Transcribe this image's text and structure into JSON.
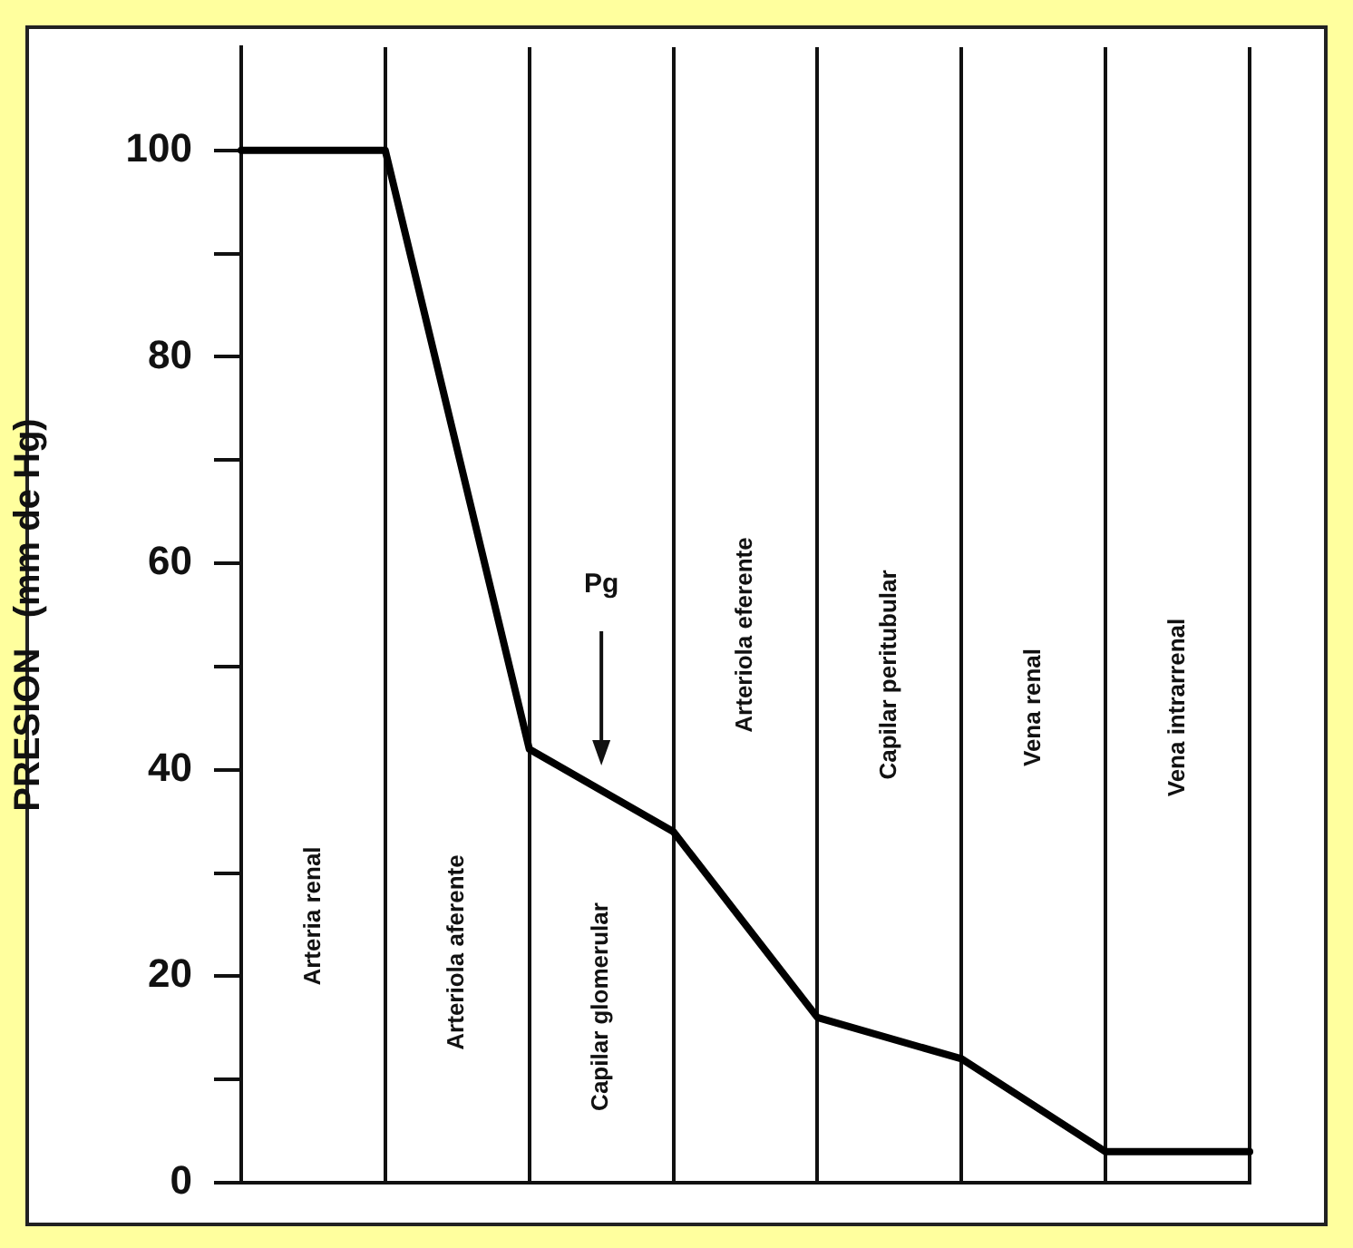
{
  "chart_data": {
    "type": "line",
    "ylabel": "PRESION   (mm de Hg)",
    "categories": [
      null,
      null,
      null,
      null,
      null,
      null,
      null,
      null
    ],
    "values": [
      100,
      100,
      42,
      34,
      16,
      12,
      3,
      3
    ],
    "color": "#000000",
    "ylim": [
      0,
      110
    ],
    "yticks": [
      0,
      {
        "value": 10,
        "label": null
      },
      20,
      {
        "value": 30,
        "label": null
      },
      40,
      {
        "value": 50,
        "label": null
      },
      60,
      {
        "value": 70,
        "label": null
      },
      80,
      {
        "value": 90,
        "label": null
      },
      100
    ],
    "tick_labels": "y",
    "grid": "x",
    "annotations": [
      "Arteria renal",
      "Arteriola aferente",
      "Capilar glomerular",
      "Arteriola eferente",
      "Capilar peritubular",
      "Vena renal",
      "Vena intrarrenal",
      "Pg"
    ]
  }
}
